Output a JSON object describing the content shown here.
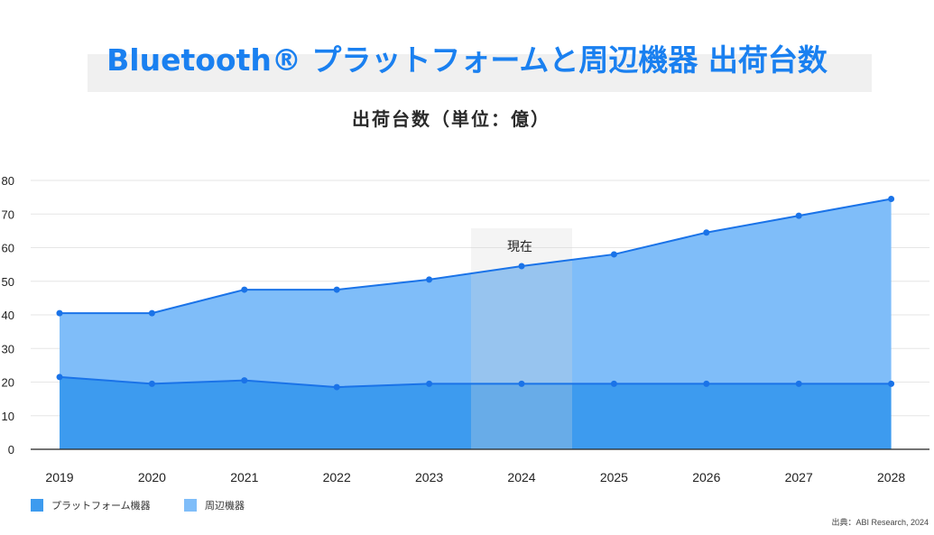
{
  "title": "Bluetooth® プラットフォームと周辺機器 出荷台数",
  "subtitle": "出荷台数（単位：億）",
  "source": "出典：ABI Research, 2024",
  "colors": {
    "title": "#1a80f0",
    "platform_fill": "#3d9bef",
    "peripheral_fill": "#7fbdf9",
    "line": "#1a73e8",
    "highlight": "#d8d8d8"
  },
  "chart_data": {
    "type": "area",
    "stacked": true,
    "categories": [
      "2019",
      "2020",
      "2021",
      "2022",
      "2023",
      "2024",
      "2025",
      "2026",
      "2027",
      "2028"
    ],
    "series": [
      {
        "name": "プラットフォーム機器",
        "values": [
          21.5,
          19.5,
          20.5,
          18.5,
          19.5,
          19.5,
          19.5,
          19.5,
          19.5,
          19.5
        ]
      },
      {
        "name": "周辺機器",
        "values": [
          19,
          21,
          27,
          29,
          31,
          35,
          38.5,
          45,
          50,
          55
        ]
      }
    ],
    "ylim": [
      0,
      80
    ],
    "yticks": [
      "0",
      "10",
      "20",
      "30",
      "40",
      "50",
      "60",
      "70",
      "80"
    ],
    "grid": true,
    "legend_position": "bottom-left",
    "highlight": {
      "category": "2024",
      "label": "現在"
    }
  }
}
